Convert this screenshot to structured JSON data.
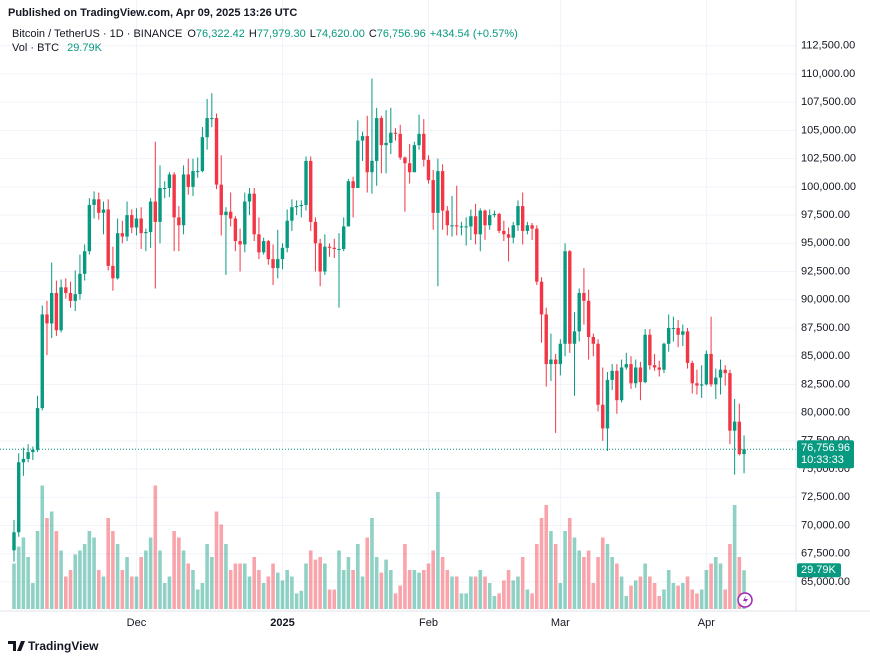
{
  "header": {
    "published": "Published on TradingView.com, Apr 09, 2025 13:26 UTC",
    "symbol": "Bitcoin / TetherUS · 1D · BINANCE",
    "o_label": "O",
    "open": "76,322.42",
    "h_label": "H",
    "high": "77,979.30",
    "l_label": "L",
    "low": "74,620.00",
    "c_label": "C",
    "close": "76,756.96",
    "change": "+434.54 (+0.57%)",
    "volume_label": "Vol · BTC",
    "volume_value": "29.79K"
  },
  "footer": {
    "brand": "TradingView"
  },
  "chart_data": {
    "type": "candlestick",
    "up_color": "#089981",
    "down_color": "#f23645",
    "grid": true,
    "categories": [
      null,
      null,
      null,
      null,
      null,
      null,
      null,
      null,
      null,
      null,
      null,
      null,
      null,
      null,
      null,
      null,
      null,
      null,
      null,
      null,
      null,
      null,
      null,
      null,
      null,
      null,
      "Dec",
      null,
      null,
      null,
      null,
      null,
      null,
      null,
      null,
      null,
      null,
      null,
      null,
      null,
      null,
      null,
      null,
      null,
      null,
      null,
      null,
      null,
      null,
      null,
      null,
      null,
      null,
      null,
      null,
      null,
      null,
      "2025",
      null,
      null,
      null,
      null,
      null,
      null,
      null,
      null,
      null,
      null,
      null,
      null,
      null,
      null,
      null,
      null,
      null,
      null,
      null,
      null,
      null,
      null,
      null,
      null,
      null,
      null,
      null,
      null,
      null,
      null,
      "Feb",
      null,
      null,
      null,
      null,
      null,
      null,
      null,
      null,
      null,
      null,
      null,
      null,
      null,
      null,
      null,
      null,
      null,
      null,
      null,
      null,
      null,
      null,
      null,
      null,
      null,
      null,
      null,
      "Mar",
      null,
      null,
      null,
      null,
      null,
      null,
      null,
      null,
      null,
      null,
      null,
      null,
      null,
      null,
      null,
      null,
      null,
      null,
      null,
      null,
      null,
      null,
      null,
      null,
      null,
      null,
      null,
      null,
      null,
      null,
      "Apr",
      null,
      null,
      null,
      null,
      null,
      null,
      null,
      null
    ],
    "open": [
      67800,
      69400,
      75600,
      75900,
      76500,
      76700,
      80400,
      88700,
      87900,
      90600,
      87300,
      91100,
      90600,
      89900,
      90500,
      92300,
      94300,
      98400,
      98900,
      97700,
      98000,
      93000,
      91900,
      95900,
      95600,
      97500,
      96400,
      97200,
      95900,
      96000,
      98700,
      96900,
      99900,
      99900,
      101100,
      97300,
      96600,
      101100,
      100000,
      101400,
      101400,
      104400,
      106100,
      106100,
      100200,
      97500,
      97800,
      97200,
      95200,
      94900,
      98700,
      99400,
      95800,
      94200,
      95200,
      93600,
      92800,
      93600,
      94600,
      97000,
      98200,
      98300,
      98400,
      102300,
      96900,
      95000,
      92500,
      94700,
      94600,
      94500,
      94500,
      96500,
      100500,
      99900,
      104100,
      104500,
      101300,
      102300,
      106100,
      103700,
      103900,
      104800,
      104700,
      102600,
      102100,
      101300,
      103700,
      104700,
      102400,
      100600,
      97700,
      101400,
      97900,
      96600,
      96600,
      96500,
      96500,
      96500,
      97400,
      95800,
      97900,
      96600,
      97500,
      97600,
      96100,
      95800,
      95500,
      96600,
      98300,
      96100,
      96600,
      96300,
      91600,
      88700,
      84300,
      84700,
      84300,
      86100,
      94300,
      86100,
      87200,
      90600,
      89900,
      86700,
      86100,
      80700,
      78600,
      82900,
      83700,
      81100,
      84000,
      84300,
      82600,
      84000,
      82700,
      86900,
      84200,
      84000,
      83800,
      86100,
      87500,
      87500,
      86900,
      87200,
      84400,
      82600,
      82400,
      82500,
      85200,
      82500,
      83100,
      83800,
      83500,
      78400,
      79200,
      76322.42
    ],
    "high": [
      70500,
      76400,
      76900,
      77200,
      77000,
      81500,
      89500,
      89900,
      93300,
      91700,
      91800,
      91900,
      91600,
      92600,
      94000,
      94900,
      99000,
      99600,
      99500,
      98700,
      98900,
      94700,
      97200,
      97000,
      98700,
      98000,
      98100,
      98200,
      96300,
      99000,
      104000,
      101900,
      100500,
      101300,
      101300,
      98300,
      101900,
      102500,
      102500,
      102600,
      105300,
      107800,
      108300,
      106500,
      102800,
      98200,
      99500,
      97400,
      96300,
      99500,
      99900,
      99900,
      97300,
      95500,
      95300,
      94900,
      96200,
      95000,
      98000,
      98900,
      98800,
      98800,
      102700,
      102700,
      97300,
      95400,
      95800,
      95000,
      95400,
      95900,
      97300,
      100700,
      100900,
      105900,
      104900,
      106300,
      109600,
      107000,
      106300,
      106800,
      107000,
      105200,
      105500,
      102700,
      103800,
      104000,
      106400,
      106000,
      102800,
      101500,
      102500,
      102000,
      98300,
      99200,
      100100,
      96900,
      97300,
      98000,
      98500,
      98100,
      98000,
      98000,
      97900,
      97700,
      97000,
      96400,
      96900,
      98800,
      99500,
      96900,
      96800,
      96600,
      92000,
      89300,
      87000,
      85200,
      86500,
      95000,
      94400,
      88900,
      91000,
      92800,
      90900,
      87000,
      86500,
      84000,
      83600,
      84300,
      84300,
      84700,
      85300,
      85000,
      84700,
      84500,
      87400,
      87400,
      85200,
      84600,
      86200,
      88700,
      88500,
      88200,
      87800,
      87500,
      84600,
      83800,
      84200,
      85500,
      88500,
      83900,
      84700,
      84200,
      83800,
      81200,
      80800,
      77979.3
    ],
    "low": [
      66800,
      69000,
      74400,
      75600,
      75800,
      76500,
      80200,
      85100,
      86600,
      86800,
      87100,
      90100,
      89300,
      89000,
      90000,
      91700,
      94000,
      97200,
      97100,
      95800,
      92600,
      90800,
      91800,
      95000,
      95200,
      95900,
      95700,
      94500,
      94300,
      94600,
      91000,
      95000,
      99000,
      99100,
      94300,
      94300,
      95800,
      99300,
      99200,
      100800,
      101300,
      103300,
      105300,
      99800,
      95700,
      92200,
      96500,
      94300,
      92500,
      94200,
      97500,
      95200,
      93600,
      94000,
      93100,
      91300,
      91900,
      92700,
      94200,
      96100,
      97500,
      97300,
      97900,
      96100,
      92500,
      91200,
      92200,
      93800,
      93700,
      89300,
      94300,
      96500,
      97300,
      100100,
      102300,
      99500,
      99400,
      100100,
      101200,
      101200,
      102900,
      104100,
      102400,
      97800,
      100300,
      101300,
      103300,
      101800,
      100300,
      96200,
      91200,
      96200,
      95700,
      95600,
      95700,
      95700,
      94800,
      95300,
      94900,
      94300,
      95300,
      96200,
      97300,
      95900,
      95200,
      93400,
      95000,
      96100,
      94900,
      95800,
      95300,
      91300,
      86200,
      82300,
      82800,
      78200,
      83300,
      85000,
      85300,
      81500,
      86300,
      87800,
      84700,
      85000,
      80100,
      77500,
      76600,
      82000,
      79900,
      80900,
      83800,
      82100,
      82200,
      81100,
      82600,
      83800,
      83700,
      83200,
      83500,
      85400,
      86300,
      85800,
      85900,
      83900,
      81700,
      81600,
      81300,
      82400,
      82300,
      81200,
      81600,
      82400,
      77200,
      74500,
      76200,
      74620
    ],
    "close": [
      69400,
      75600,
      75900,
      76500,
      76700,
      80400,
      88700,
      87900,
      90600,
      87300,
      91100,
      90600,
      89900,
      90500,
      92300,
      94300,
      98400,
      98900,
      97700,
      98000,
      93000,
      91900,
      95900,
      95600,
      97500,
      96400,
      97200,
      95900,
      96000,
      98700,
      96900,
      99900,
      99900,
      101100,
      97300,
      96600,
      101100,
      100000,
      101400,
      101400,
      104400,
      106100,
      106100,
      100200,
      97500,
      97800,
      97200,
      95200,
      94900,
      98700,
      99400,
      95800,
      94200,
      95200,
      93600,
      92800,
      93600,
      94600,
      97000,
      98200,
      98300,
      98400,
      102300,
      96900,
      95000,
      92500,
      94700,
      94600,
      94500,
      94500,
      96500,
      100500,
      99900,
      104100,
      104500,
      101300,
      102300,
      106100,
      103700,
      103900,
      104800,
      104700,
      102600,
      102100,
      101300,
      103700,
      104700,
      102400,
      100600,
      97700,
      101400,
      97900,
      96600,
      96600,
      96500,
      96500,
      96500,
      97400,
      95800,
      97900,
      96600,
      97500,
      97600,
      96100,
      95800,
      95500,
      96600,
      98300,
      96100,
      96600,
      96300,
      91600,
      88700,
      84300,
      84700,
      84300,
      86100,
      94300,
      86100,
      87200,
      90600,
      89900,
      86700,
      86100,
      80700,
      78600,
      82900,
      83700,
      81100,
      84000,
      84300,
      82600,
      84000,
      82700,
      86900,
      84200,
      84000,
      83800,
      86100,
      87500,
      87500,
      86900,
      87200,
      84400,
      82600,
      82400,
      82500,
      85200,
      82500,
      83100,
      83800,
      83500,
      78400,
      79200,
      76322.42,
      76756.96
    ],
    "volume": [
      35000,
      48000,
      55000,
      40000,
      20000,
      60000,
      95000,
      70000,
      75000,
      60000,
      45000,
      25000,
      30000,
      42000,
      45000,
      50000,
      60000,
      55000,
      30000,
      25000,
      70000,
      60000,
      50000,
      30000,
      40000,
      25000,
      25000,
      40000,
      45000,
      55000,
      95000,
      45000,
      20000,
      25000,
      60000,
      55000,
      45000,
      35000,
      30000,
      15000,
      20000,
      50000,
      40000,
      75000,
      65000,
      50000,
      30000,
      35000,
      35000,
      35000,
      25000,
      40000,
      30000,
      20000,
      25000,
      35000,
      28000,
      22000,
      30000,
      25000,
      12000,
      14000,
      35000,
      45000,
      38000,
      40000,
      35000,
      15000,
      15000,
      45000,
      30000,
      40000,
      30000,
      50000,
      25000,
      55000,
      70000,
      40000,
      28000,
      38000,
      30000,
      12000,
      18000,
      50000,
      30000,
      30000,
      28000,
      30000,
      35000,
      45000,
      90000,
      40000,
      30000,
      25000,
      25000,
      12000,
      12000,
      25000,
      25000,
      30000,
      25000,
      20000,
      10000,
      12000,
      22000,
      30000,
      22000,
      25000,
      40000,
      15000,
      12000,
      50000,
      70000,
      80000,
      60000,
      50000,
      20000,
      60000,
      70000,
      55000,
      45000,
      40000,
      45000,
      20000,
      40000,
      55000,
      50000,
      40000,
      35000,
      25000,
      10000,
      18000,
      22000,
      25000,
      35000,
      25000,
      20000,
      10000,
      15000,
      30000,
      20000,
      18000,
      20000,
      25000,
      15000,
      12000,
      15000,
      30000,
      35000,
      40000,
      35000,
      15000,
      50000,
      80000,
      40000,
      29790
    ],
    "ylim": [
      62600,
      113900
    ],
    "yticks": [
      {
        "value": 65000,
        "label": "65,000.00"
      },
      {
        "value": 67500,
        "label": "67,500.00"
      },
      {
        "value": 70000,
        "label": "70,000.00"
      },
      {
        "value": 72500,
        "label": "72,500.00"
      },
      {
        "value": 75000,
        "label": "75,000.00"
      },
      {
        "value": 77500,
        "label": "77,500.00"
      },
      {
        "value": 80000,
        "label": "80,000.00"
      },
      {
        "value": 82500,
        "label": "82,500.00"
      },
      {
        "value": 85000,
        "label": "85,000.00"
      },
      {
        "value": 87500,
        "label": "87,500.00"
      },
      {
        "value": 90000,
        "label": "90,000.00"
      },
      {
        "value": 92500,
        "label": "92,500.00"
      },
      {
        "value": 95000,
        "label": "95,000.00"
      },
      {
        "value": 97500,
        "label": "97,500.00"
      },
      {
        "value": 100000,
        "label": "100,000.00"
      },
      {
        "value": 102500,
        "label": "102,500.00"
      },
      {
        "value": 105000,
        "label": "105,000.00"
      },
      {
        "value": 107500,
        "label": "107,500.00"
      },
      {
        "value": 110000,
        "label": "110,000.00"
      },
      {
        "value": 112500,
        "label": "112,500.00"
      }
    ],
    "last_price_label": "76,756.96",
    "countdown": "10:33:33",
    "last_volume_label": "29.79K"
  }
}
